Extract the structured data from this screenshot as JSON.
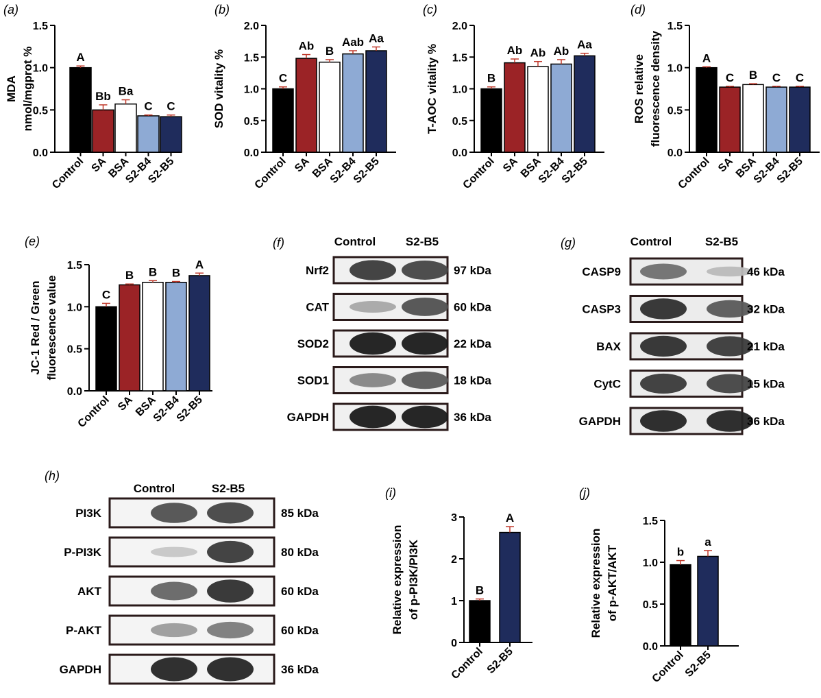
{
  "colors": {
    "Control": "#000000",
    "SA": "#9b2326",
    "BSA": "#ffffff",
    "S2-B4": "#8eaad4",
    "S2-B5": "#1f2c5c",
    "error": "#c0392b"
  },
  "chart_data": [
    {
      "id": "a",
      "panel_label": "(a)",
      "type": "bar",
      "title": "",
      "ylabel_lines": [
        "MDA",
        "nmol/mgprot %"
      ],
      "ylim": [
        0,
        1.5
      ],
      "yticks": [
        0,
        0.5,
        1.0,
        1.5
      ],
      "tick_labels": [
        "0.0",
        "0.5",
        "1.0",
        "1.5"
      ],
      "categories": [
        "Control",
        "SA",
        "BSA",
        "S2-B4",
        "S2-B5"
      ],
      "values": [
        1.0,
        0.5,
        0.57,
        0.43,
        0.42
      ],
      "errors": [
        0.02,
        0.06,
        0.05,
        0.01,
        0.02
      ],
      "letters": [
        "A",
        "Bb",
        "Ba",
        "C",
        "C"
      ]
    },
    {
      "id": "b",
      "panel_label": "(b)",
      "type": "bar",
      "title": "",
      "ylabel_lines": [
        "SOD vitality %"
      ],
      "ylim": [
        0,
        2.0
      ],
      "yticks": [
        0,
        0.5,
        1.0,
        1.5,
        2.0
      ],
      "tick_labels": [
        "0.0",
        "0.5",
        "1.0",
        "1.5",
        "2.0"
      ],
      "categories": [
        "Control",
        "SA",
        "BSA",
        "S2-B4",
        "S2-B5"
      ],
      "values": [
        1.0,
        1.48,
        1.42,
        1.55,
        1.6
      ],
      "errors": [
        0.03,
        0.06,
        0.04,
        0.05,
        0.06
      ],
      "letters": [
        "C",
        "Ab",
        "B",
        "Aab",
        "Aa"
      ]
    },
    {
      "id": "c",
      "panel_label": "(c)",
      "type": "bar",
      "title": "",
      "ylabel_lines": [
        "T-AOC vitality %"
      ],
      "ylim": [
        0,
        2.0
      ],
      "yticks": [
        0,
        0.5,
        1.0,
        1.5,
        2.0
      ],
      "tick_labels": [
        "0.0",
        "0.5",
        "1.0",
        "1.5",
        "2.0"
      ],
      "categories": [
        "Control",
        "SA",
        "BSA",
        "S2-B4",
        "S2-B5"
      ],
      "values": [
        1.0,
        1.41,
        1.35,
        1.39,
        1.52
      ],
      "errors": [
        0.03,
        0.06,
        0.08,
        0.07,
        0.04
      ],
      "letters": [
        "B",
        "Ab",
        "Ab",
        "Ab",
        "Aa"
      ]
    },
    {
      "id": "d",
      "panel_label": "(d)",
      "type": "bar",
      "title": "",
      "ylabel_lines": [
        "ROS relative",
        "fluorescence density"
      ],
      "ylim": [
        0,
        1.5
      ],
      "yticks": [
        0,
        0.5,
        1.0,
        1.5
      ],
      "tick_labels": [
        "0.0",
        "0.5",
        "1.0",
        "1.5"
      ],
      "categories": [
        "Control",
        "SA",
        "BSA",
        "S2-B4",
        "S2-B5"
      ],
      "values": [
        1.0,
        0.77,
        0.8,
        0.77,
        0.77
      ],
      "errors": [
        0.01,
        0.01,
        0.01,
        0.01,
        0.01
      ],
      "letters": [
        "A",
        "C",
        "B",
        "C",
        "C"
      ]
    },
    {
      "id": "e",
      "panel_label": "(e)",
      "type": "bar",
      "title": "",
      "ylabel_lines": [
        "JC-1 Red / Green",
        "fluorescence value"
      ],
      "ylim": [
        0,
        1.5
      ],
      "yticks": [
        0,
        0.5,
        1.0,
        1.5
      ],
      "tick_labels": [
        "0.0",
        "0.5",
        "1.0",
        "1.5"
      ],
      "categories": [
        "Control",
        "SA",
        "BSA",
        "S2-B4",
        "S2-B5"
      ],
      "values": [
        1.0,
        1.26,
        1.29,
        1.29,
        1.37
      ],
      "errors": [
        0.04,
        0.01,
        0.02,
        0.01,
        0.03
      ],
      "letters": [
        "C",
        "B",
        "B",
        "B",
        "A"
      ]
    },
    {
      "id": "i",
      "panel_label": "(i)",
      "type": "bar",
      "title": "",
      "ylabel_lines": [
        "Relative expression",
        "of p-PI3K/PI3K"
      ],
      "ylim": [
        0,
        3
      ],
      "yticks": [
        0,
        1,
        2,
        3
      ],
      "tick_labels": [
        "0",
        "1",
        "2",
        "3"
      ],
      "categories": [
        "Control",
        "S2-B5"
      ],
      "values": [
        1.0,
        2.63
      ],
      "errors": [
        0.04,
        0.14
      ],
      "letters": [
        "B",
        "A"
      ]
    },
    {
      "id": "j",
      "panel_label": "(j)",
      "type": "bar",
      "title": "",
      "ylabel_lines": [
        "Relative expression",
        "of p-AKT/AKT"
      ],
      "ylim": [
        0,
        1.5
      ],
      "yticks": [
        0,
        0.5,
        1.0,
        1.5
      ],
      "tick_labels": [
        "0.0",
        "0.5",
        "1.0",
        "1.5"
      ],
      "categories": [
        "Control",
        "S2-B5"
      ],
      "values": [
        0.97,
        1.07
      ],
      "errors": [
        0.05,
        0.07
      ],
      "letters": [
        "b",
        "a"
      ]
    }
  ],
  "blots": [
    {
      "id": "f",
      "panel_label": "(f)",
      "lanes": [
        "Control",
        "S2-B5"
      ],
      "rows": [
        {
          "protein": "Nrf2",
          "kda": "97 kDa"
        },
        {
          "protein": "CAT",
          "kda": "60 kDa"
        },
        {
          "protein": "SOD2",
          "kda": "22 kDa"
        },
        {
          "protein": "SOD1",
          "kda": "18 kDa"
        },
        {
          "protein": "GAPDH",
          "kda": "36 kDa"
        }
      ]
    },
    {
      "id": "g",
      "panel_label": "(g)",
      "lanes": [
        "Control",
        "S2-B5"
      ],
      "rows": [
        {
          "protein": "CASP9",
          "kda": "46 kDa"
        },
        {
          "protein": "CASP3",
          "kda": "32 kDa"
        },
        {
          "protein": "BAX",
          "kda": "21 kDa"
        },
        {
          "protein": "CytC",
          "kda": "15 kDa"
        },
        {
          "protein": "GAPDH",
          "kda": "36 kDa"
        }
      ]
    },
    {
      "id": "h",
      "panel_label": "(h)",
      "lanes": [
        "Control",
        "S2-B5"
      ],
      "rows": [
        {
          "protein": "PI3K",
          "kda": "85 kDa"
        },
        {
          "protein": "P-PI3K",
          "kda": "80 kDa"
        },
        {
          "protein": "AKT",
          "kda": "60 kDa"
        },
        {
          "protein": "P-AKT",
          "kda": "60 kDa"
        },
        {
          "protein": "GAPDH",
          "kda": "36 kDa"
        }
      ]
    }
  ]
}
